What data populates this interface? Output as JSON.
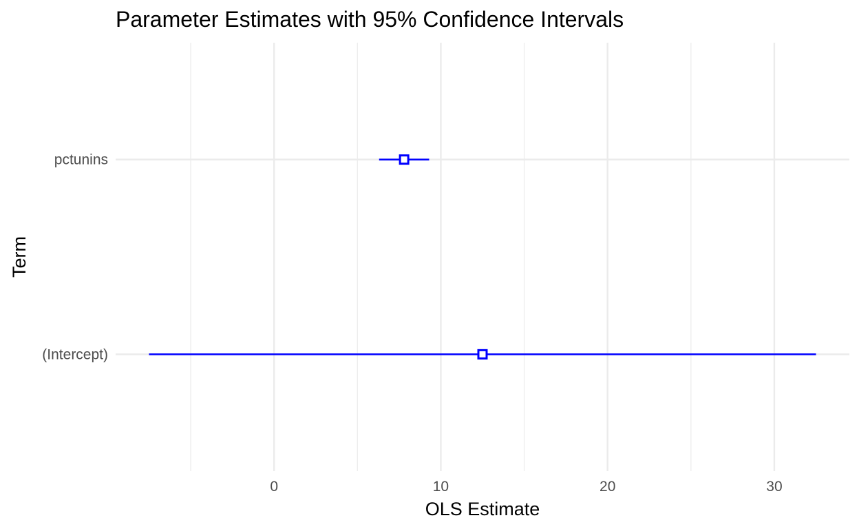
{
  "chart_data": {
    "type": "scatter",
    "title": "Parameter Estimates with 95% Confidence Intervals",
    "xlabel": "OLS Estimate",
    "ylabel": "Term",
    "categories": [
      "(Intercept)",
      "pctunins"
    ],
    "estimates": [
      12.5,
      7.8
    ],
    "ci_low": [
      -7.5,
      6.3
    ],
    "ci_high": [
      32.5,
      9.3
    ],
    "xlim": [
      -9.5,
      34.5
    ],
    "x_ticks": [
      0,
      10,
      20,
      30
    ],
    "x_tick_labels": [
      "0",
      "10",
      "20",
      "30"
    ],
    "grid": true,
    "legend": "none",
    "colors": {
      "series": "#0000ff",
      "marker_fill": "#ffffff",
      "grid": "#ebebeb",
      "tick_text": "#4d4d4d",
      "text": "#000000"
    }
  }
}
